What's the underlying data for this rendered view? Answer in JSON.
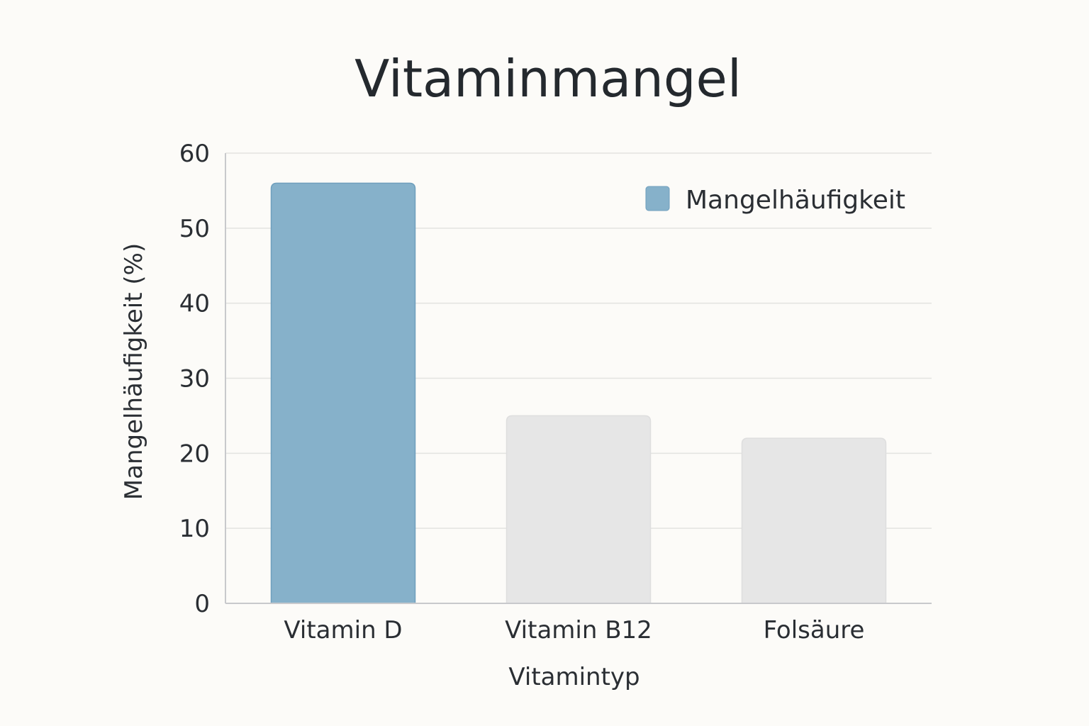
{
  "chart_data": {
    "type": "bar",
    "title": "Vitaminmangel",
    "xlabel": "Vitamintyp",
    "ylabel": "Mangelhäufigkeit (%)",
    "categories": [
      "Vitamin D",
      "Vitamin B12",
      "Folsäure"
    ],
    "series": [
      {
        "name": "Mangelhäufigkeit",
        "values": [
          56,
          25,
          22
        ],
        "colors": [
          "#86b1ca",
          "#e6e6e6",
          "#e6e6e6"
        ]
      }
    ],
    "ylim": [
      0,
      60
    ],
    "yticks": [
      "0",
      "10",
      "20",
      "30",
      "40",
      "50",
      "60"
    ],
    "grid": true,
    "legend_position": "top-right",
    "legend_color": "#86b1ca"
  }
}
